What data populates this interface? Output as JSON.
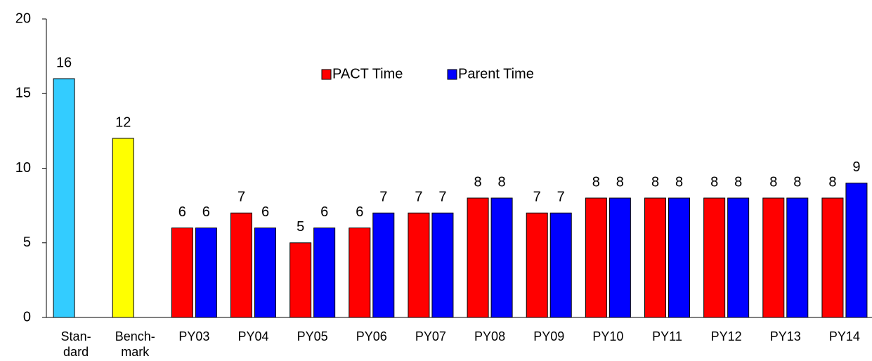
{
  "chart_data": {
    "type": "bar",
    "categories": [
      [
        "Stan-",
        "dard"
      ],
      [
        "Bench-",
        "mark"
      ],
      [
        "PY03"
      ],
      [
        "PY04"
      ],
      [
        "PY05"
      ],
      [
        "PY06"
      ],
      [
        "PY07"
      ],
      [
        "PY08"
      ],
      [
        "PY09"
      ],
      [
        "PY10"
      ],
      [
        "PY11"
      ],
      [
        "PY12"
      ],
      [
        "PY13"
      ],
      [
        "PY14"
      ]
    ],
    "series": [
      {
        "name": "PACT Time",
        "color": "#ff0000",
        "point_colors": [
          "#33ccff",
          "#ffff00",
          "#ff0000",
          "#ff0000",
          "#ff0000",
          "#ff0000",
          "#ff0000",
          "#ff0000",
          "#ff0000",
          "#ff0000",
          "#ff0000",
          "#ff0000",
          "#ff0000",
          "#ff0000"
        ],
        "values": [
          16,
          12,
          6,
          7,
          5,
          6,
          7,
          8,
          7,
          8,
          8,
          8,
          8,
          8
        ]
      },
      {
        "name": "Parent Time",
        "color": "#0000ff",
        "values": [
          null,
          null,
          6,
          6,
          6,
          7,
          7,
          8,
          7,
          8,
          8,
          8,
          8,
          9
        ]
      }
    ],
    "ylim": [
      0,
      20
    ],
    "yticks": [
      0,
      5,
      10,
      15,
      20
    ],
    "legend": "top-center",
    "grid": false
  }
}
